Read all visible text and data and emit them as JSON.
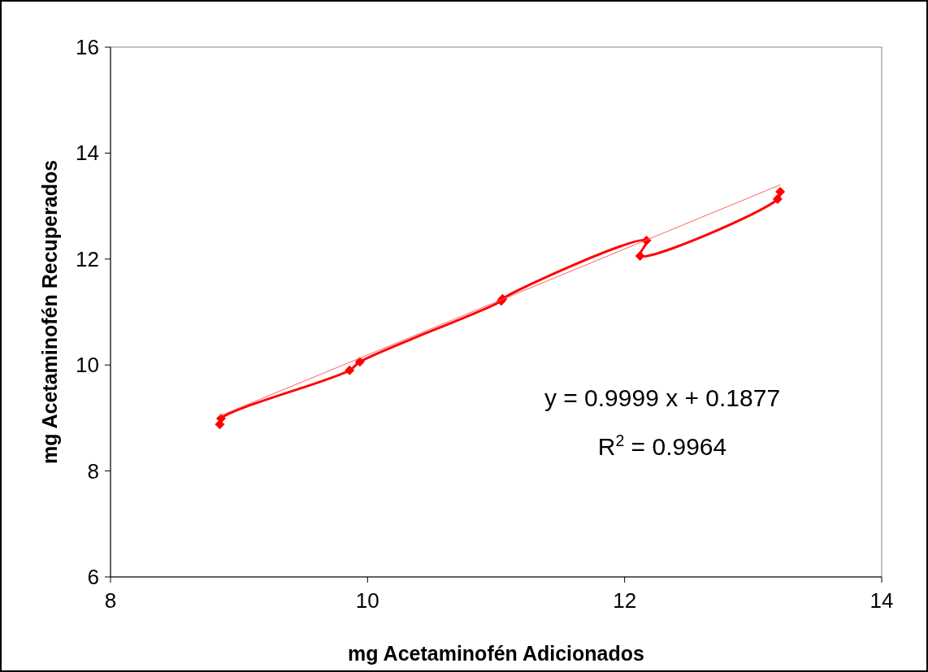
{
  "chart_data": {
    "type": "line",
    "xlabel": "mg Acetaminofén Adicionados",
    "ylabel": "mg Acetaminofén Recuperados",
    "xlim": [
      8,
      14
    ],
    "xticks": [
      8,
      10,
      12,
      14
    ],
    "ylim": [
      6,
      16
    ],
    "yticks": [
      6,
      8,
      10,
      12,
      14,
      16
    ],
    "grid": false,
    "series": [
      {
        "color": "#ff0000",
        "marker": "diamond",
        "line_style": "solid",
        "x": [
          8.85,
          8.86,
          9.86,
          9.94,
          11.04,
          11.05,
          12.17,
          12.12,
          13.19,
          13.21
        ],
        "values": [
          8.88,
          8.99,
          9.9,
          10.06,
          11.21,
          11.25,
          12.35,
          12.06,
          13.13,
          13.27
        ]
      },
      {
        "color": "#ff6060",
        "marker": "none",
        "line_style": "solid",
        "x": [
          8.85,
          13.21
        ],
        "values": [
          9.04,
          13.4
        ]
      }
    ],
    "annotations": [
      "y = 0.9999 x + 0.1877",
      "R$^{2}$ = 0.9964"
    ]
  }
}
